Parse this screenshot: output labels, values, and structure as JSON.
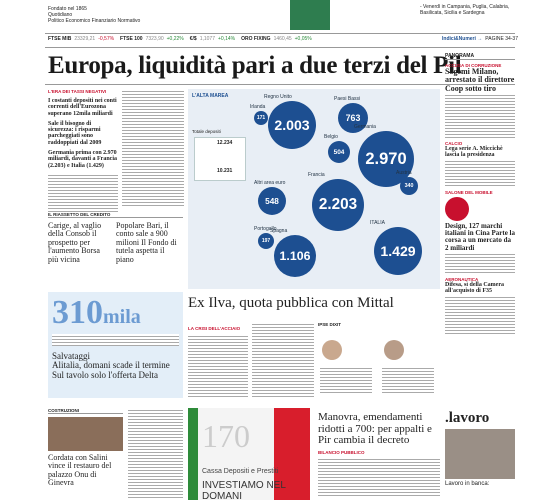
{
  "masthead": {
    "founded": "Fondato nel 1865",
    "kind": "Quotidiano",
    "subtitle": "Politico Economico Finanziario Normativo",
    "edition": "- Venerdì in Campania, Puglia, Calabria, Basilicata, Sicilia e Sardegna"
  },
  "ticker": [
    {
      "name": "FTSE MIB",
      "value": "23329,21",
      "change": "-0,57%"
    },
    {
      "name": "FTSE 100",
      "value": "7323,90",
      "change": "+0,22%"
    },
    {
      "name": "€/$",
      "value": "1,1077",
      "change": "+0,14%"
    },
    {
      "name": "ORO FIXING",
      "value": "1460,45",
      "change": "+0,05%"
    }
  ],
  "indici": {
    "label": "Indici&Numeri →",
    "pages": "PAGINE 34-37"
  },
  "headline": "Europa, liquidità pari a due terzi del Pil",
  "lead": {
    "kicker": "L'ERA DEI TASSI NEGATIVI",
    "p1": "I costanti depositi nei conti correnti dell'Eurozona superano 12mila miliardi",
    "p2": "Sale il bisogno di sicurezza: i risparmi parcheggiati sono raddoppiati dal 2009",
    "p3": "Germania prima con 2.970 miliardi, davanti a Francia (2.203) e Italia (1.429)"
  },
  "infographic": {
    "title": "L'ALTA MAREA",
    "total_label": "Totale depositi",
    "total_high": "12.234",
    "total_low": "10.231",
    "bubbles": [
      {
        "name": "Irlanda",
        "value": "171"
      },
      {
        "name": "Regno Unito",
        "value": "2.003"
      },
      {
        "name": "Paesi Bassi",
        "value": "763"
      },
      {
        "name": "Belgio",
        "value": "504"
      },
      {
        "name": "Germania",
        "value": "2.970"
      },
      {
        "name": "Francia",
        "value": "2.203"
      },
      {
        "name": "Altri area euro",
        "value": "548"
      },
      {
        "name": "Austria",
        "value": "340"
      },
      {
        "name": "Portogallo",
        "value": "197"
      },
      {
        "name": "Spagna",
        "value": "1.106"
      },
      {
        "name": "ITALIA",
        "value": "1.429"
      }
    ]
  },
  "credito": {
    "kicker": "IL RIASSETTO DEL CREDITO",
    "a": "Carige, al vaglio della Consob il prospetto per l'aumento Borsa più vicina",
    "b": "Popolare Bari, il conto sale a 900 milioni Il Fondo di tutela aspetta il piano"
  },
  "alitalia": {
    "figure": "310",
    "unit": "mila",
    "kicker": "Salvataggi",
    "title": "Alitalia, domani scade il termine Sul tavolo solo l'offerta Delta"
  },
  "costruzioni": {
    "kicker": "COSTRUZIONI",
    "title": "Cordata con Salini vince il restauro del palazzo Onu di Ginevra"
  },
  "ilva": {
    "title": "Ex Ilva, quota pubblica con Mittal",
    "kicker": "LA CRISI DELL'ACCIAIO",
    "sidebar": "IPSE DIXIT"
  },
  "ad": {
    "years": "170",
    "brand": "Cassa Depositi e Prestiti",
    "slogan": "INVESTIAMO NEL DOMANI"
  },
  "manovra": {
    "title": "Manovra, emendamenti ridotti a 700: per appalti e Pir cambia il decreto",
    "kicker": "BILANCIO PUBBLICO"
  },
  "panorama": {
    "head": "PANORAMA",
    "k1": "ACCUSA DI CORRUZIONE",
    "t1": "Sogemi Milano, arrestato il direttore Coop sotto tiro",
    "k2": "CALCIO",
    "t2": "Lega serie A. Miccichè lascia la presidenza",
    "k3": "SALONE DEL MOBILE",
    "t3": "Design, 127 marchi italiani in Cina Parte la corsa a un mercato da 2 miliardi",
    "k4": "AERONAUTICA",
    "t4": "Difesa, sì della Camera all'acquisto di F35"
  },
  "lavoro": {
    "brand": ".lavoro",
    "title": "Lavoro in banca:"
  }
}
